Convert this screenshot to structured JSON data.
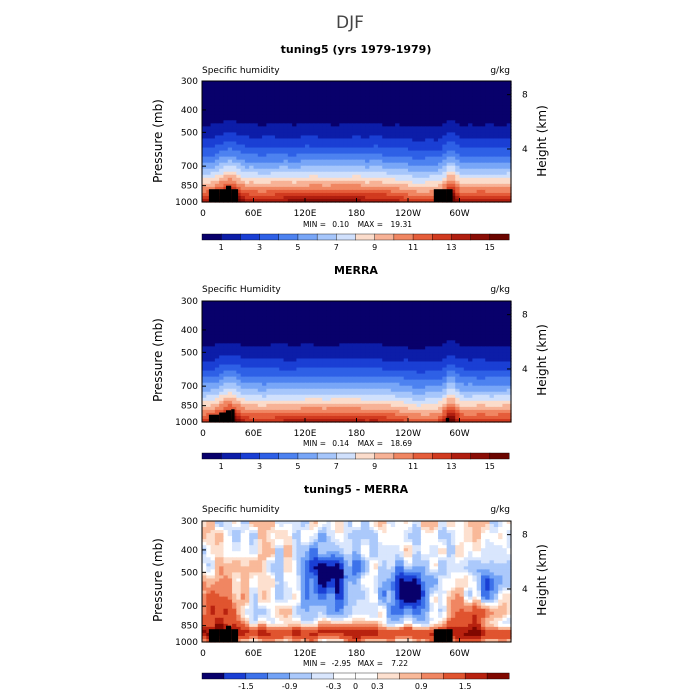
{
  "figure": {
    "title": "DJF"
  },
  "chart_data": [
    {
      "type": "heatmap",
      "title": "tuning5 (yrs 1979-1979)",
      "left_label": "Specific humidity",
      "units": "g/kg",
      "ylabel": "Pressure (mb)",
      "ylabel_right": "Height (km)",
      "y_ticks": [
        "300",
        "400",
        "500",
        "700",
        "850",
        "1000"
      ],
      "y_tick_values": [
        300,
        400,
        500,
        700,
        850,
        1000
      ],
      "ylim": [
        300,
        1000
      ],
      "right_ticks": [
        "8",
        "4"
      ],
      "right_tick_values": [
        8,
        4
      ],
      "x_ticks": [
        "0",
        "60E",
        "120E",
        "180",
        "120W",
        "60W"
      ],
      "x_tick_values": [
        0,
        60,
        120,
        180,
        240,
        300
      ],
      "xlim": [
        0,
        360
      ],
      "min_label": "MIN =",
      "min_value": "0.10",
      "max_label": "MAX =",
      "max_value": "19.31",
      "colorbar_labels": [
        "1",
        "3",
        "5",
        "7",
        "9",
        "11",
        "13",
        "15"
      ],
      "colorbar_values": [
        1,
        3,
        5,
        7,
        9,
        11,
        13,
        15
      ],
      "colorbar_range": [
        0,
        16
      ],
      "field": "humidity",
      "scale": 1.0,
      "amplitude": 19.3
    },
    {
      "type": "heatmap",
      "title": "MERRA",
      "left_label": "Specific Humidity",
      "units": "g/kg",
      "ylabel": "Pressure (mb)",
      "ylabel_right": "Height (km)",
      "y_ticks": [
        "300",
        "400",
        "500",
        "700",
        "850",
        "1000"
      ],
      "y_tick_values": [
        300,
        400,
        500,
        700,
        850,
        1000
      ],
      "ylim": [
        300,
        1000
      ],
      "right_ticks": [
        "8",
        "4"
      ],
      "right_tick_values": [
        8,
        4
      ],
      "x_ticks": [
        "0",
        "60E",
        "120E",
        "180",
        "120W",
        "60W"
      ],
      "x_tick_values": [
        0,
        60,
        120,
        180,
        240,
        300
      ],
      "xlim": [
        0,
        360
      ],
      "min_label": "MIN =",
      "min_value": "0.14",
      "max_label": "MAX =",
      "max_value": "18.69",
      "colorbar_labels": [
        "1",
        "3",
        "5",
        "7",
        "9",
        "11",
        "13",
        "15"
      ],
      "colorbar_values": [
        1,
        3,
        5,
        7,
        9,
        11,
        13,
        15
      ],
      "colorbar_range": [
        0,
        16
      ],
      "field": "humidity",
      "scale": 0.97,
      "amplitude": 18.7
    },
    {
      "type": "heatmap",
      "title": "tuning5 - MERRA",
      "left_label": "Specific humidity",
      "units": "g/kg",
      "ylabel": "Pressure (mb)",
      "ylabel_right": "Height (km)",
      "y_ticks": [
        "300",
        "400",
        "500",
        "700",
        "850",
        "1000"
      ],
      "y_tick_values": [
        300,
        400,
        500,
        700,
        850,
        1000
      ],
      "ylim": [
        300,
        1000
      ],
      "right_ticks": [
        "8",
        "4"
      ],
      "right_tick_values": [
        8,
        4
      ],
      "x_ticks": [
        "0",
        "60E",
        "120E",
        "180",
        "120W",
        "60W"
      ],
      "x_tick_values": [
        0,
        60,
        120,
        180,
        240,
        300
      ],
      "xlim": [
        0,
        360
      ],
      "min_label": "MIN =",
      "min_value": "-2.95",
      "max_label": "MAX =",
      "max_value": "7.22",
      "colorbar_labels": [
        "-1.5",
        "-0.9",
        "-0.3",
        "0",
        "0.3",
        "0.9",
        "1.5"
      ],
      "colorbar_values": [
        -1.5,
        -0.9,
        -0.3,
        0,
        0.3,
        0.9,
        1.5
      ],
      "colorbar_range": [
        -2.1,
        2.1
      ],
      "field": "difference",
      "scale": 1.0,
      "amplitude": 2.0
    }
  ],
  "colors": {
    "humidity_palette": [
      "#08006b",
      "#0c1da8",
      "#1a3fd4",
      "#2e60e6",
      "#4d82f0",
      "#78a6f7",
      "#a6c6fb",
      "#d0e0fc",
      "#fbdccb",
      "#f7b296",
      "#f08662",
      "#e55d3a",
      "#d13a1f",
      "#b01e0f",
      "#8a0d06",
      "#6b0500"
    ],
    "difference_palette": [
      "#08006b",
      "#1a3fd4",
      "#3d72ea",
      "#73a3f6",
      "#abc9fb",
      "#d9e6fd",
      "#ffffff",
      "#ffffff",
      "#fde0cf",
      "#f9b999",
      "#f08662",
      "#e0542f",
      "#b8220f",
      "#800800"
    ],
    "terrain": "#000000"
  }
}
